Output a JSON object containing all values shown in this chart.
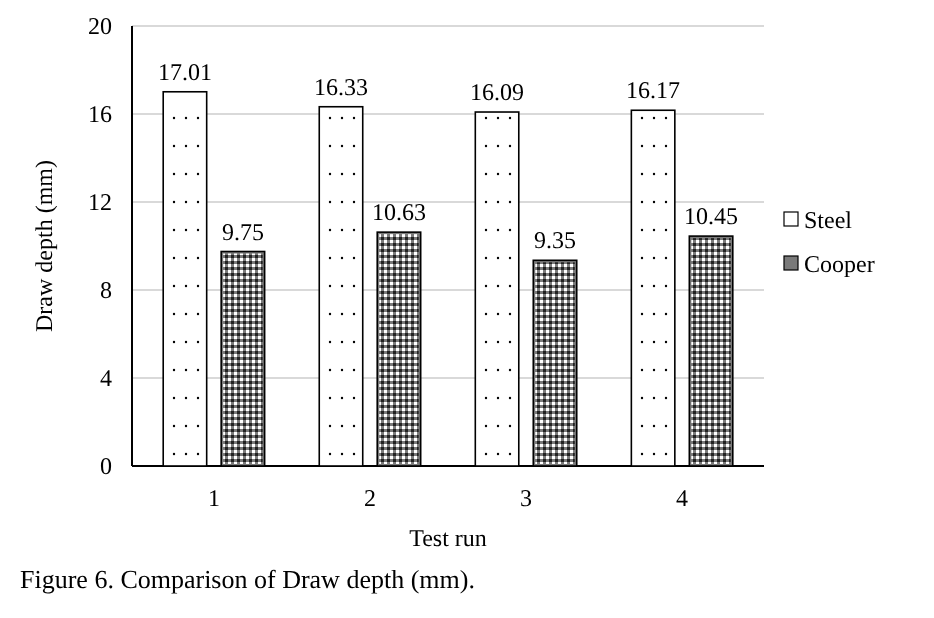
{
  "chart_data": {
    "type": "bar",
    "xlabel": "Test run",
    "ylabel": "Draw depth (mm)",
    "annotations": [
      "Figure 6. Comparison of Draw depth (mm)."
    ],
    "categories": [
      "1",
      "2",
      "3",
      "4"
    ],
    "series": [
      {
        "name": "Steel",
        "color": "#ffffff",
        "values": [
          17.01,
          16.33,
          16.09,
          16.17
        ]
      },
      {
        "name": "Cooper",
        "color": "#7a7a7a",
        "values": [
          9.75,
          10.63,
          9.35,
          10.45
        ]
      }
    ],
    "ylim": [
      0,
      20
    ],
    "yticks": [
      0,
      4,
      8,
      12,
      16,
      20
    ],
    "grid": "y",
    "legend": "right",
    "data_labels": true
  }
}
